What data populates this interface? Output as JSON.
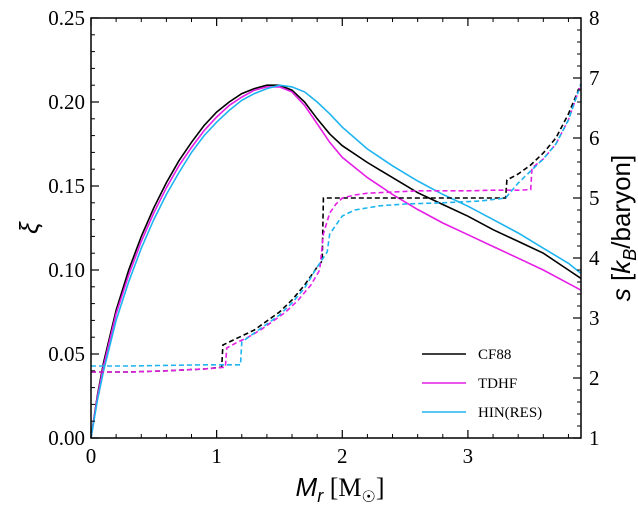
{
  "chart_data": {
    "type": "line",
    "xlabel": "M_r [M☉]",
    "ylabel_left": "ξ",
    "ylabel_right": "s [k_B/baryon]",
    "xlim": [
      0,
      3.9
    ],
    "ylim_left": [
      0,
      0.25
    ],
    "ylim_right": [
      1,
      8
    ],
    "x_ticks": [
      0,
      1,
      2,
      3
    ],
    "y_ticks_left": [
      "0.00",
      "0.05",
      "0.10",
      "0.15",
      "0.20",
      "0.25"
    ],
    "y_ticks_right": [
      "1",
      "2",
      "3",
      "4",
      "5",
      "6",
      "7",
      "8"
    ],
    "grid": false,
    "legend_position": "bottom-right",
    "colors": {
      "CF88": "#000000",
      "TDHF": "#e61ee6",
      "HIN(RES)": "#1eb4f0"
    },
    "series": [
      {
        "name": "CF88",
        "axis": "left",
        "style": "solid",
        "x": [
          0,
          0.05,
          0.1,
          0.2,
          0.3,
          0.4,
          0.5,
          0.6,
          0.7,
          0.8,
          0.9,
          1.0,
          1.1,
          1.2,
          1.3,
          1.4,
          1.5,
          1.6,
          1.7,
          1.8,
          1.9,
          2.0,
          2.2,
          2.4,
          2.6,
          2.8,
          3.0,
          3.2,
          3.4,
          3.6,
          3.8,
          3.9
        ],
        "y": [
          0.0,
          0.025,
          0.045,
          0.076,
          0.1,
          0.12,
          0.137,
          0.152,
          0.165,
          0.176,
          0.186,
          0.194,
          0.2,
          0.205,
          0.208,
          0.21,
          0.21,
          0.207,
          0.2,
          0.19,
          0.181,
          0.174,
          0.164,
          0.155,
          0.146,
          0.139,
          0.132,
          0.124,
          0.117,
          0.11,
          0.1,
          0.095
        ]
      },
      {
        "name": "TDHF",
        "axis": "left",
        "style": "solid",
        "x": [
          0,
          0.05,
          0.1,
          0.2,
          0.3,
          0.4,
          0.5,
          0.6,
          0.7,
          0.8,
          0.9,
          1.0,
          1.1,
          1.2,
          1.3,
          1.4,
          1.5,
          1.6,
          1.7,
          1.8,
          1.9,
          2.0,
          2.2,
          2.4,
          2.6,
          2.8,
          3.0,
          3.2,
          3.4,
          3.6,
          3.8,
          3.9
        ],
        "y": [
          0.0,
          0.024,
          0.043,
          0.074,
          0.097,
          0.117,
          0.134,
          0.149,
          0.162,
          0.173,
          0.183,
          0.191,
          0.198,
          0.203,
          0.207,
          0.209,
          0.209,
          0.206,
          0.198,
          0.187,
          0.176,
          0.167,
          0.155,
          0.145,
          0.136,
          0.128,
          0.121,
          0.114,
          0.107,
          0.1,
          0.092,
          0.088
        ]
      },
      {
        "name": "HIN(RES)",
        "axis": "left",
        "style": "solid",
        "x": [
          0,
          0.05,
          0.1,
          0.2,
          0.3,
          0.4,
          0.5,
          0.6,
          0.7,
          0.8,
          0.9,
          1.0,
          1.1,
          1.2,
          1.3,
          1.4,
          1.5,
          1.6,
          1.7,
          1.8,
          1.9,
          2.0,
          2.2,
          2.4,
          2.6,
          2.8,
          3.0,
          3.2,
          3.4,
          3.6,
          3.8,
          3.9
        ],
        "y": [
          0.0,
          0.022,
          0.04,
          0.07,
          0.093,
          0.113,
          0.13,
          0.145,
          0.158,
          0.17,
          0.18,
          0.188,
          0.195,
          0.201,
          0.205,
          0.208,
          0.21,
          0.209,
          0.206,
          0.2,
          0.193,
          0.185,
          0.172,
          0.162,
          0.153,
          0.145,
          0.138,
          0.13,
          0.122,
          0.113,
          0.104,
          0.098
        ]
      },
      {
        "name": "CF88",
        "axis": "right",
        "style": "dashed",
        "x": [
          0,
          0.3,
          0.6,
          0.9,
          1.04,
          1.05,
          1.1,
          1.2,
          1.3,
          1.4,
          1.5,
          1.6,
          1.7,
          1.8,
          1.84,
          1.85,
          2.0,
          2.5,
          3.0,
          3.3,
          3.31,
          3.4,
          3.5,
          3.6,
          3.7,
          3.8,
          3.9
        ],
        "y": [
          2.1,
          2.1,
          2.12,
          2.15,
          2.18,
          2.55,
          2.6,
          2.7,
          2.8,
          2.95,
          3.1,
          3.3,
          3.55,
          3.85,
          3.95,
          5.0,
          5.0,
          5.0,
          5.0,
          5.0,
          5.3,
          5.4,
          5.55,
          5.75,
          6.0,
          6.4,
          6.9
        ]
      },
      {
        "name": "TDHF",
        "axis": "right",
        "style": "dashed",
        "x": [
          0,
          0.3,
          0.6,
          0.9,
          1.07,
          1.08,
          1.15,
          1.25,
          1.35,
          1.45,
          1.55,
          1.65,
          1.75,
          1.82,
          1.85,
          1.9,
          1.95,
          2.0,
          2.1,
          2.2,
          2.4,
          2.6,
          2.8,
          3.0,
          3.2,
          3.4,
          3.5,
          3.51,
          3.6,
          3.7,
          3.8,
          3.9
        ],
        "y": [
          2.1,
          2.1,
          2.12,
          2.15,
          2.18,
          2.5,
          2.58,
          2.68,
          2.8,
          2.95,
          3.1,
          3.3,
          3.55,
          3.8,
          4.4,
          4.75,
          4.9,
          5.0,
          5.05,
          5.08,
          5.1,
          5.12,
          5.12,
          5.12,
          5.13,
          5.13,
          5.14,
          5.5,
          5.65,
          5.9,
          6.3,
          6.9
        ]
      },
      {
        "name": "HIN(RES)",
        "axis": "right",
        "style": "dashed",
        "x": [
          0,
          0.3,
          0.6,
          0.9,
          1.19,
          1.2,
          1.3,
          1.4,
          1.5,
          1.6,
          1.7,
          1.8,
          1.88,
          1.9,
          2.0,
          2.1,
          2.3,
          2.5,
          2.8,
          3.1,
          3.3,
          3.4,
          3.5,
          3.6,
          3.7,
          3.8,
          3.9
        ],
        "y": [
          2.2,
          2.2,
          2.21,
          2.22,
          2.22,
          2.6,
          2.75,
          2.9,
          3.05,
          3.25,
          3.5,
          3.85,
          4.1,
          4.4,
          4.7,
          4.8,
          4.87,
          4.9,
          4.92,
          4.95,
          5.0,
          5.25,
          5.45,
          5.65,
          5.9,
          6.3,
          6.9
        ]
      }
    ],
    "legend": [
      {
        "label": "CF88",
        "color": "#000000"
      },
      {
        "label": "TDHF",
        "color": "#e61ee6"
      },
      {
        "label": "HIN(RES)",
        "color": "#1eb4f0"
      }
    ]
  }
}
